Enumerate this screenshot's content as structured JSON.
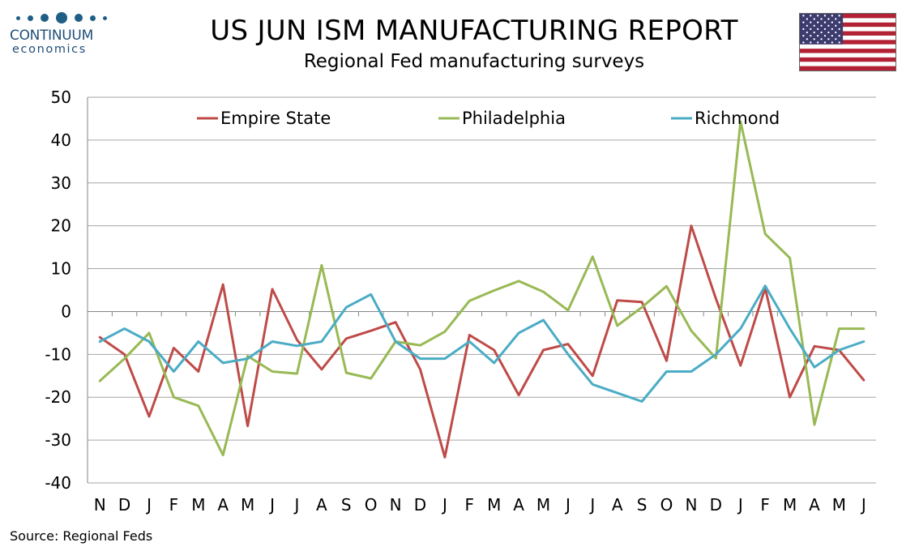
{
  "header": {
    "title": "US JUN ISM MANUFACTURING REPORT",
    "subtitle": "Regional Fed manufacturing surveys"
  },
  "logo": {
    "word": "CONTINUUM",
    "sub": "economics",
    "color": "#1f4e79"
  },
  "flag": {
    "name": "us-flag-icon"
  },
  "source": "Source: Regional Feds",
  "chart_data": {
    "type": "line",
    "categories": [
      "N",
      "D",
      "J",
      "F",
      "M",
      "A",
      "M",
      "J",
      "J",
      "A",
      "S",
      "O",
      "N",
      "D",
      "J",
      "F",
      "M",
      "A",
      "M",
      "J",
      "J",
      "A",
      "S",
      "O",
      "N",
      "D",
      "J",
      "F",
      "M",
      "A",
      "M",
      "J"
    ],
    "ylim": [
      -40,
      50
    ],
    "yticks": [
      50,
      40,
      30,
      20,
      10,
      0,
      -10,
      -20,
      -30,
      -40
    ],
    "grid": true,
    "legend_position": "top",
    "series": [
      {
        "name": "Empire State",
        "color": "#be4b48",
        "values": [
          -6,
          -10,
          -24.5,
          -8.5,
          -14,
          6.3,
          -26.7,
          5.2,
          -6.6,
          -13.5,
          -6.3,
          -4.5,
          -2.5,
          -13.5,
          -34,
          -5.5,
          -9,
          -19.5,
          -9,
          -7.6,
          -15,
          2.6,
          2.2,
          -11.5,
          20,
          3,
          -12.6,
          5.5,
          -20,
          -8.1,
          -9,
          -16
        ]
      },
      {
        "name": "Philadelphia",
        "color": "#98b954",
        "values": [
          -16.2,
          -11,
          -5,
          -20,
          -22,
          -33.5,
          -10.4,
          -14,
          -14.5,
          10.8,
          -14.3,
          -15.6,
          -7,
          -7.9,
          -4.7,
          2.5,
          4.9,
          7.1,
          4.6,
          0.3,
          12.8,
          -3.3,
          1,
          5.9,
          -4.5,
          -10.9,
          44.3,
          18.1,
          12.5,
          -26.4,
          -4,
          -4
        ]
      },
      {
        "name": "Richmond",
        "color": "#4aacc5",
        "values": [
          -7,
          -4,
          -7,
          -14,
          -7,
          -12,
          -11,
          -7,
          -8,
          -7,
          1,
          4,
          -7,
          -11,
          -11,
          -7,
          -12,
          -5,
          -2,
          -10,
          -17,
          -19,
          -21,
          -14,
          -14,
          -10,
          -4,
          6,
          -4,
          -13,
          -9,
          -7
        ]
      }
    ]
  }
}
